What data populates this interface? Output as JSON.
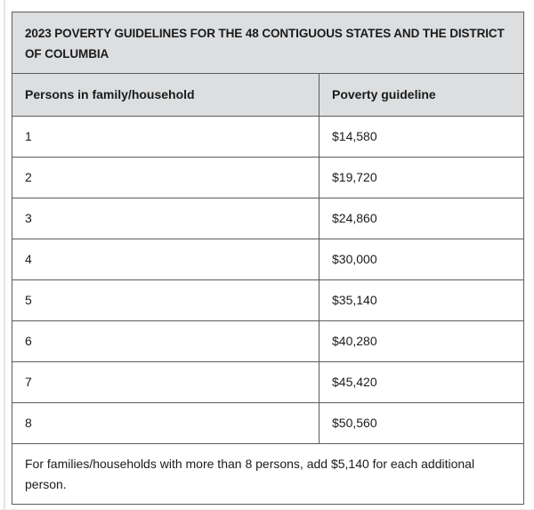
{
  "table": {
    "title": "2023 POVERTY GUIDELINES FOR THE 48 CONTIGUOUS STATES AND THE DISTRICT OF COLUMBIA",
    "columns": [
      {
        "label": "Persons in family/household"
      },
      {
        "label": "Poverty guideline"
      }
    ],
    "rows": [
      {
        "persons": "1",
        "guideline": "$14,580"
      },
      {
        "persons": "2",
        "guideline": "$19,720"
      },
      {
        "persons": "3",
        "guideline": "$24,860"
      },
      {
        "persons": "4",
        "guideline": "$30,000"
      },
      {
        "persons": "5",
        "guideline": "$35,140"
      },
      {
        "persons": "6",
        "guideline": "$40,280"
      },
      {
        "persons": "7",
        "guideline": "$45,420"
      },
      {
        "persons": "8",
        "guideline": "$50,560"
      }
    ],
    "footnote": "For families/households with more than 8 persons, add $5,140 for each additional person.",
    "colors": {
      "header_bg": "#dcdee0",
      "border": "#5c5c5c",
      "text": "#1b1b1b"
    }
  }
}
